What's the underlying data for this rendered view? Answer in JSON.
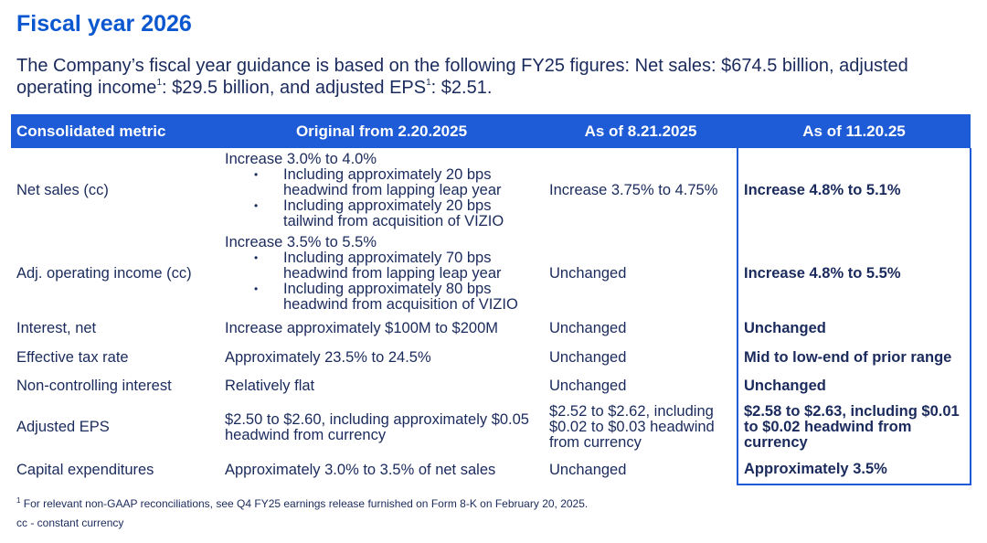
{
  "header": {
    "title": "Fiscal year 2026",
    "subtitle": [
      "The Company’s fiscal year guidance is based on the following FY25 figures: Net sales: $674.5 billion, adjusted operating income",
      "1",
      ": $29.5 billion, and adjusted EPS",
      "1",
      ": $2.51."
    ]
  },
  "table": {
    "columns": [
      "Consolidated metric",
      "Original from 2.20.2025",
      "As of 8.21.2025",
      "As of 11.20.25"
    ],
    "rows": [
      {
        "metric": "Net sales (cc)",
        "original": {
          "lead": "Increase 3.0% to 4.0%",
          "bullets": [
            "Including approximately 20 bps headwind from lapping leap year",
            "Including approximately 20 bps tailwind from acquisition of VIZIO"
          ]
        },
        "aug": "Increase 3.75% to 4.75%",
        "nov": "Increase 4.8% to 5.1%"
      },
      {
        "metric": "Adj. operating income (cc)",
        "original": {
          "lead": "Increase 3.5% to 5.5%",
          "bullets": [
            "Including approximately 70 bps headwind from lapping leap year",
            "Including approximately 80 bps headwind from acquisition of VIZIO"
          ]
        },
        "aug": "Unchanged",
        "nov": "Increase 4.8% to 5.5%"
      },
      {
        "metric": "Interest, net",
        "original": "Increase approximately $100M to $200M",
        "aug": "Unchanged",
        "nov": "Unchanged"
      },
      {
        "metric": "Effective tax rate",
        "original": "Approximately 23.5% to 24.5%",
        "aug": "Unchanged",
        "nov": "Mid to low-end of prior range"
      },
      {
        "metric": "Non-controlling interest",
        "original": "Relatively flat",
        "aug": "Unchanged",
        "nov": "Unchanged"
      },
      {
        "metric": "Adjusted EPS",
        "original": "$2.50 to $2.60, including approximately $0.05 headwind from currency",
        "aug": "$2.52 to $2.62, including $0.02 to $0.03 headwind from currency",
        "nov": "$2.58 to $2.63, including $0.01 to $0.02 headwind from currency"
      },
      {
        "metric": "Capital expenditures",
        "original": "Approximately 3.0% to 3.5% of net sales",
        "aug": "Unchanged",
        "nov": "Approximately 3.5%"
      }
    ]
  },
  "footnotes": {
    "marker": "1",
    "note": "For relevant non-GAAP reconciliations, see Q4 FY25 earnings release furnished on Form 8-K on February 20, 2025.",
    "cc": "cc - constant currency"
  }
}
